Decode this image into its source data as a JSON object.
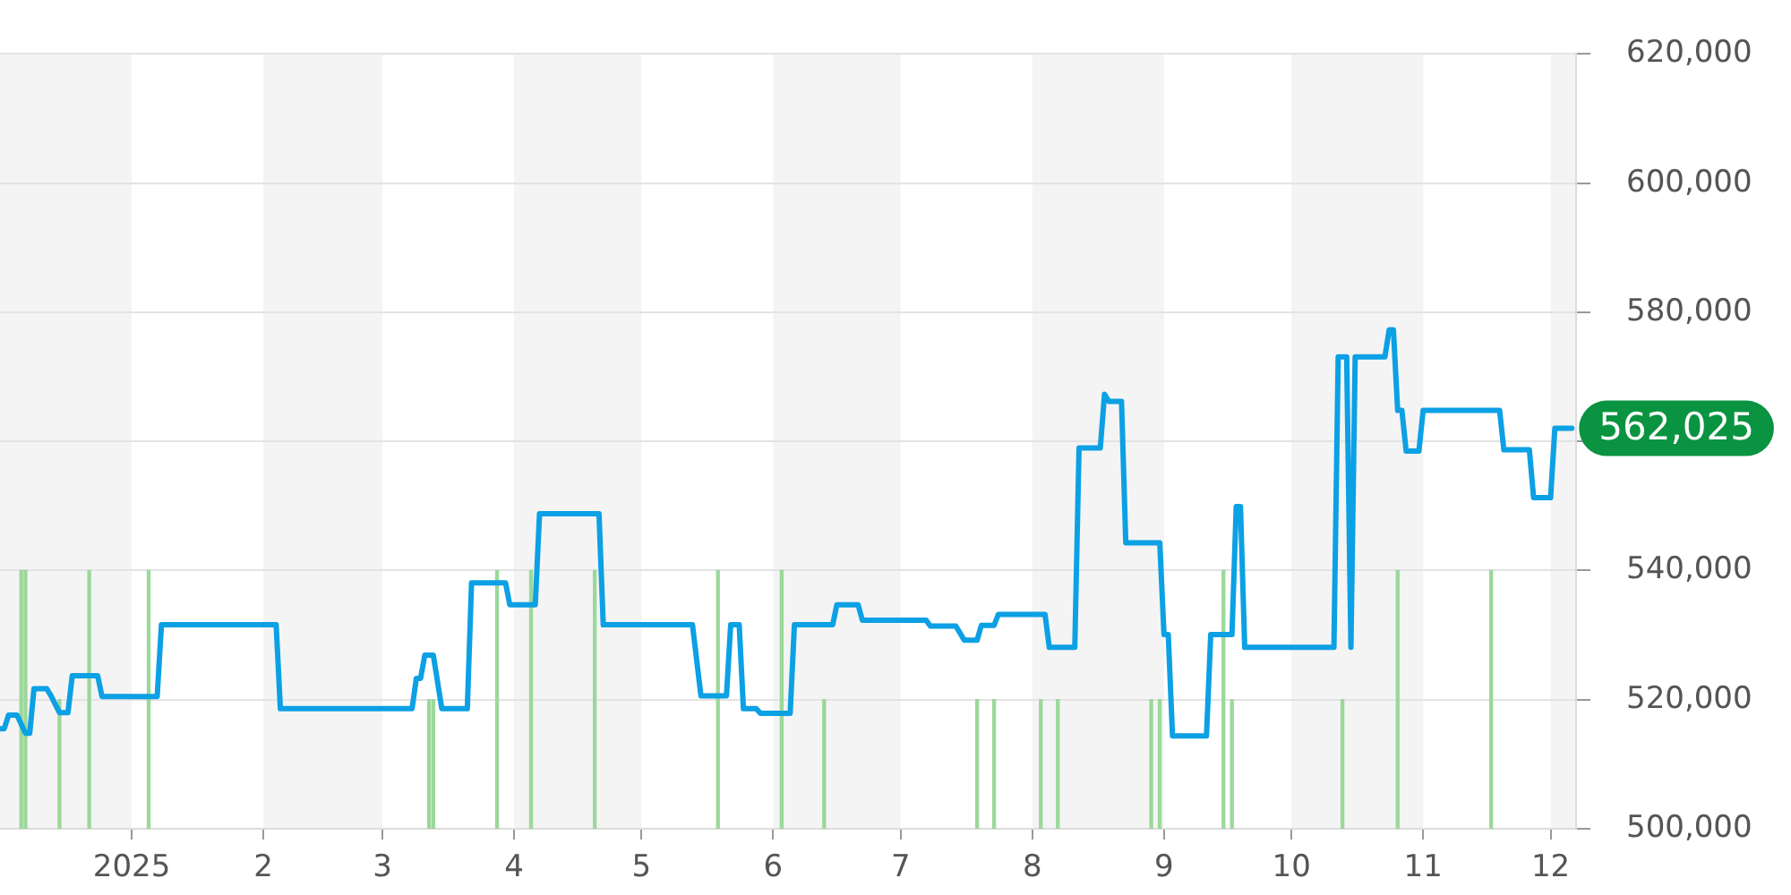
{
  "chart_data": {
    "type": "line",
    "xlim": [
      "2024-12-01",
      "2025-12-07"
    ],
    "xticks": [
      {
        "value": "2025-01-01",
        "label": "2025"
      },
      {
        "value": "2025-02-01",
        "label": "2"
      },
      {
        "value": "2025-03-01",
        "label": "3"
      },
      {
        "value": "2025-04-01",
        "label": "4"
      },
      {
        "value": "2025-05-01",
        "label": "5"
      },
      {
        "value": "2025-06-01",
        "label": "6"
      },
      {
        "value": "2025-07-01",
        "label": "7"
      },
      {
        "value": "2025-08-01",
        "label": "8"
      },
      {
        "value": "2025-09-01",
        "label": "9"
      },
      {
        "value": "2025-10-01",
        "label": "10"
      },
      {
        "value": "2025-11-01",
        "label": "11"
      },
      {
        "value": "2025-12-01",
        "label": "12"
      }
    ],
    "ylim": [
      500000,
      620000
    ],
    "yticks": [
      {
        "value": 500000,
        "label": "500,000"
      },
      {
        "value": 520000,
        "label": "520,000"
      },
      {
        "value": 540000,
        "label": "540,000"
      },
      {
        "value": 560000,
        "label": null
      },
      {
        "value": 580000,
        "label": "580,000"
      },
      {
        "value": 600000,
        "label": "600,000"
      },
      {
        "value": 620000,
        "label": "620,000"
      }
    ],
    "grid": "y",
    "legend": false,
    "marker": "none",
    "line_style": "solid",
    "bands": [
      {
        "axis": "x",
        "from": "2024-12-01",
        "to": "2025-01-01",
        "color": "#f4f4f4"
      },
      {
        "axis": "x",
        "from": "2025-02-01",
        "to": "2025-03-01",
        "color": "#f4f4f4"
      },
      {
        "axis": "x",
        "from": "2025-04-01",
        "to": "2025-05-01",
        "color": "#f4f4f4"
      },
      {
        "axis": "x",
        "from": "2025-06-01",
        "to": "2025-07-01",
        "color": "#f4f4f4"
      },
      {
        "axis": "x",
        "from": "2025-08-01",
        "to": "2025-09-01",
        "color": "#f4f4f4"
      },
      {
        "axis": "x",
        "from": "2025-10-01",
        "to": "2025-11-01",
        "color": "#f4f4f4"
      },
      {
        "axis": "x",
        "from": "2025-12-01",
        "to": "2025-12-07",
        "color": "#f4f4f4"
      }
    ],
    "series": [
      {
        "type": "bar",
        "color": "#9bd89b",
        "x": [
          "2024-12-06",
          "2024-12-07",
          "2024-12-15",
          "2024-12-22",
          "2025-01-05",
          "2025-03-12",
          "2025-03-13",
          "2025-03-28",
          "2025-04-05",
          "2025-04-20",
          "2025-05-19",
          "2025-06-03",
          "2025-06-13",
          "2025-07-19",
          "2025-07-23",
          "2025-08-03",
          "2025-08-07",
          "2025-08-29",
          "2025-08-31",
          "2025-09-15",
          "2025-09-17",
          "2025-10-13",
          "2025-10-26",
          "2025-11-17"
        ],
        "values": [
          540000,
          540000,
          520000,
          540000,
          540000,
          520000,
          520000,
          540000,
          540000,
          540000,
          540000,
          540000,
          520000,
          520000,
          520000,
          520000,
          520000,
          520000,
          520000,
          540000,
          520000,
          520000,
          540000,
          540000
        ]
      },
      {
        "color": "#0ca0e4",
        "x": [
          "2024-12-01",
          "2024-12-02",
          "2024-12-03",
          "2024-12-05",
          "2024-12-07",
          "2024-12-08",
          "2024-12-09",
          "2024-12-12",
          "2024-12-13",
          "2024-12-15",
          "2024-12-17",
          "2024-12-18",
          "2024-12-24",
          "2024-12-25",
          "2025-01-07",
          "2025-01-08",
          "2025-02-04",
          "2025-02-05",
          "2025-03-08",
          "2025-03-09",
          "2025-03-10",
          "2025-03-11",
          "2025-03-13",
          "2025-03-15",
          "2025-03-21",
          "2025-03-22",
          "2025-03-30",
          "2025-03-31",
          "2025-04-06",
          "2025-04-07",
          "2025-04-21",
          "2025-04-22",
          "2025-05-13",
          "2025-05-15",
          "2025-05-21",
          "2025-05-22",
          "2025-05-24",
          "2025-05-25",
          "2025-05-28",
          "2025-05-29",
          "2025-06-05",
          "2025-06-06",
          "2025-06-15",
          "2025-06-16",
          "2025-06-21",
          "2025-06-22",
          "2025-07-07",
          "2025-07-08",
          "2025-07-14",
          "2025-07-16",
          "2025-07-19",
          "2025-07-20",
          "2025-07-23",
          "2025-07-24",
          "2025-08-04",
          "2025-08-05",
          "2025-08-11",
          "2025-08-12",
          "2025-08-17",
          "2025-08-18",
          "2025-08-19",
          "2025-08-22",
          "2025-08-23",
          "2025-08-31",
          "2025-09-01",
          "2025-09-02",
          "2025-09-03",
          "2025-09-11",
          "2025-09-12",
          "2025-09-17",
          "2025-09-18",
          "2025-09-19",
          "2025-09-20",
          "2025-10-11",
          "2025-10-12",
          "2025-10-14",
          "2025-10-15",
          "2025-10-16",
          "2025-10-23",
          "2025-10-24",
          "2025-10-25",
          "2025-10-26",
          "2025-10-27",
          "2025-10-28",
          "2025-10-31",
          "2025-11-01",
          "2025-11-19",
          "2025-11-20",
          "2025-11-26",
          "2025-11-27",
          "2025-12-01",
          "2025-12-02",
          "2025-12-06"
        ],
        "values": [
          515500,
          515500,
          517600,
          517600,
          514800,
          514800,
          521700,
          521700,
          520600,
          518000,
          518000,
          523700,
          523700,
          520500,
          520500,
          531600,
          531600,
          518600,
          518600,
          523300,
          523300,
          526900,
          526900,
          518600,
          518600,
          538100,
          538100,
          534700,
          534700,
          548800,
          548800,
          531600,
          531600,
          520600,
          520600,
          531600,
          531600,
          518600,
          518600,
          517900,
          517900,
          531600,
          531600,
          534700,
          534700,
          532300,
          532300,
          531400,
          531400,
          529200,
          529200,
          531500,
          531500,
          533200,
          533200,
          528100,
          528100,
          559000,
          559000,
          567300,
          566200,
          566200,
          544300,
          544300,
          530100,
          530100,
          514400,
          514400,
          530100,
          530100,
          549900,
          549900,
          528100,
          528100,
          573100,
          573100,
          528100,
          573100,
          573100,
          577300,
          577300,
          564800,
          564800,
          558500,
          558500,
          564800,
          564800,
          558700,
          558700,
          551300,
          551300,
          562025,
          562025
        ]
      }
    ],
    "annotations": [
      {
        "text": "562,025",
        "x": "2025-12-06",
        "y": 562025
      }
    ]
  }
}
